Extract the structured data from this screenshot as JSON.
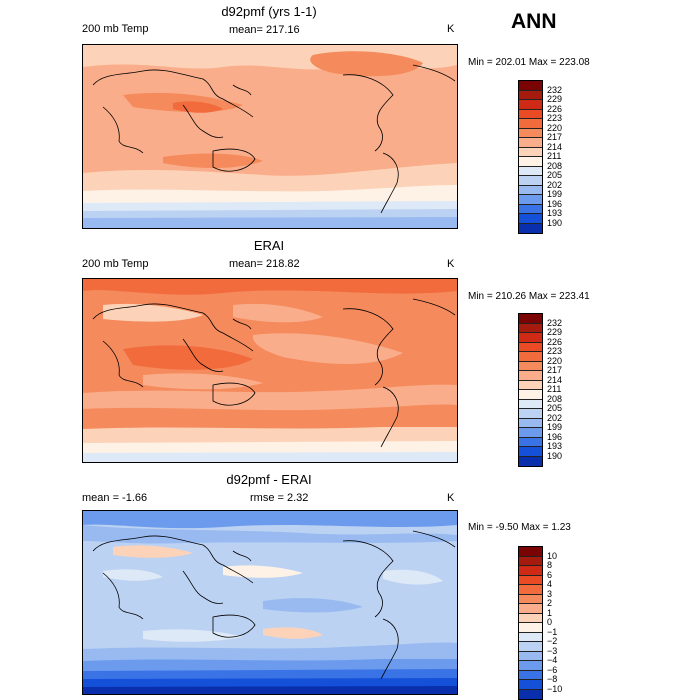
{
  "header": {
    "season": "ANN"
  },
  "panels": [
    {
      "title": "d92pmf (yrs 1-1)",
      "left": "200 mb Temp",
      "center": "mean=  217.16",
      "right": "K",
      "minmax": "Min = 202.01  Max = 223.08",
      "colorbar": {
        "labels": [
          "232",
          "229",
          "226",
          "223",
          "220",
          "217",
          "214",
          "211",
          "208",
          "205",
          "202",
          "199",
          "196",
          "193",
          "190"
        ],
        "colors": [
          "#7a0403",
          "#a51b0d",
          "#cf2a15",
          "#ea4b24",
          "#f26b3c",
          "#f58a5c",
          "#f9ad8a",
          "#fcd3b8",
          "#fef2e6",
          "#dde9f7",
          "#bcd2f3",
          "#98baf0",
          "#6c9bee",
          "#3a73e6",
          "#1450d8",
          "#0a2fad"
        ]
      }
    },
    {
      "title": "ERAI",
      "left": "200 mb Temp",
      "center": "mean=  218.82",
      "right": "K",
      "minmax": "Min = 210.26  Max = 223.41",
      "colorbar": {
        "labels": [
          "232",
          "229",
          "226",
          "223",
          "220",
          "217",
          "214",
          "211",
          "208",
          "205",
          "202",
          "199",
          "196",
          "193",
          "190"
        ],
        "colors": [
          "#7a0403",
          "#a51b0d",
          "#cf2a15",
          "#ea4b24",
          "#f26b3c",
          "#f58a5c",
          "#f9ad8a",
          "#fcd3b8",
          "#fef2e6",
          "#dde9f7",
          "#bcd2f3",
          "#98baf0",
          "#6c9bee",
          "#3a73e6",
          "#1450d8",
          "#0a2fad"
        ]
      }
    },
    {
      "title": "d92pmf - ERAI",
      "left": "mean =    -1.66",
      "center": "rmse =    2.32",
      "right": "K",
      "minmax": "Min =  -9.50  Max =    1.23",
      "colorbar": {
        "labels": [
          "10",
          "8",
          "6",
          "4",
          "3",
          "2",
          "1",
          "0",
          "−1",
          "−2",
          "−3",
          "−4",
          "−6",
          "−8",
          "−10"
        ],
        "colors": [
          "#7a0403",
          "#a51b0d",
          "#cf2a15",
          "#ea4b24",
          "#f26b3c",
          "#f58a5c",
          "#f9ad8a",
          "#fcd3b8",
          "#fef2e6",
          "#dde9f7",
          "#bcd2f3",
          "#98baf0",
          "#6c9bee",
          "#3a73e6",
          "#1450d8",
          "#0a2fad"
        ]
      }
    }
  ]
}
